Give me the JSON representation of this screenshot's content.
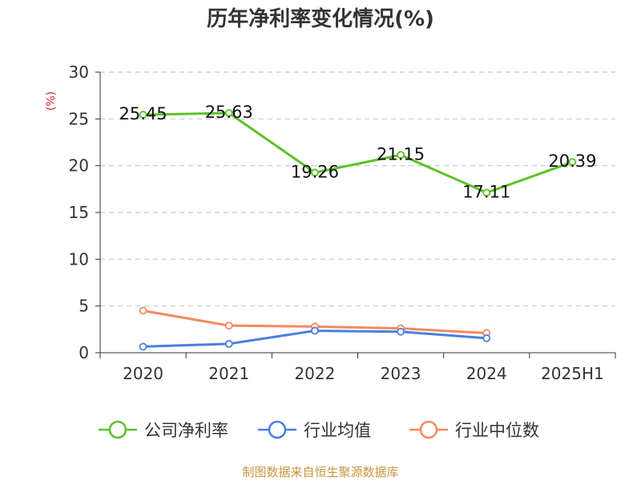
{
  "chart_data": {
    "type": "line",
    "title": "历年净利率变化情况(%)",
    "y_unit": "(%)",
    "categories": [
      "2020",
      "2021",
      "2022",
      "2023",
      "2024",
      "2025H1"
    ],
    "ylim": [
      0,
      30
    ],
    "yticks": [
      "0",
      "5",
      "10",
      "15",
      "20",
      "25",
      "30"
    ],
    "grid": true,
    "legend_position": "bottom",
    "series": [
      {
        "name": "公司净利率",
        "color": "#5cc225",
        "values": [
          25.45,
          25.63,
          19.26,
          21.15,
          17.11,
          20.39
        ],
        "labels": [
          "25.45",
          "25.63",
          "19.26",
          "21.15",
          "17.11",
          "20.39"
        ]
      },
      {
        "name": "行业均值",
        "color": "#4a7fe0",
        "values": [
          0.65,
          0.95,
          2.35,
          2.25,
          1.55,
          null
        ]
      },
      {
        "name": "行业中位数",
        "color": "#f4895f",
        "values": [
          4.5,
          2.9,
          2.8,
          2.6,
          2.1,
          null
        ]
      }
    ]
  },
  "source": "制图数据来自恒生聚源数据库"
}
